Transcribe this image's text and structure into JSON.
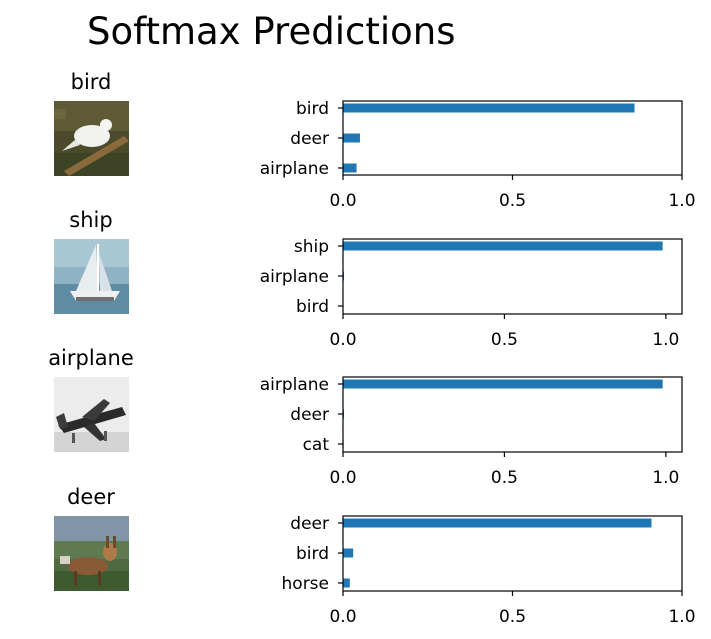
{
  "title": "Softmax Predictions",
  "colors": {
    "bar": "#1f77b4",
    "axis": "#000000"
  },
  "chart_data": [
    {
      "type": "bar",
      "orientation": "horizontal",
      "image_label": "bird",
      "categories": [
        "bird",
        "deer",
        "airplane"
      ],
      "values": [
        0.86,
        0.05,
        0.04
      ],
      "xlim": [
        0.0,
        1.0
      ],
      "xticks": [
        "0.0",
        "0.5",
        "1.0"
      ],
      "tick_values": [
        0.0,
        0.5,
        1.0
      ]
    },
    {
      "type": "bar",
      "orientation": "horizontal",
      "image_label": "ship",
      "categories": [
        "ship",
        "airplane",
        "bird"
      ],
      "values": [
        0.99,
        0.003,
        0.001
      ],
      "xlim": [
        0.0,
        1.05
      ],
      "xticks": [
        "0.0",
        "0.5",
        "1.0"
      ],
      "tick_values": [
        0.0,
        0.5,
        1.0
      ]
    },
    {
      "type": "bar",
      "orientation": "horizontal",
      "image_label": "airplane",
      "categories": [
        "airplane",
        "deer",
        "cat"
      ],
      "values": [
        0.99,
        0.003,
        0.002
      ],
      "xlim": [
        0.0,
        1.05
      ],
      "xticks": [
        "0.0",
        "0.5",
        "1.0"
      ],
      "tick_values": [
        0.0,
        0.5,
        1.0
      ]
    },
    {
      "type": "bar",
      "orientation": "horizontal",
      "image_label": "deer",
      "categories": [
        "deer",
        "bird",
        "horse"
      ],
      "values": [
        0.91,
        0.03,
        0.02
      ],
      "xlim": [
        0.0,
        1.0
      ],
      "xticks": [
        "0.0",
        "0.5",
        "1.0"
      ],
      "tick_values": [
        0.0,
        0.5,
        1.0
      ]
    }
  ]
}
